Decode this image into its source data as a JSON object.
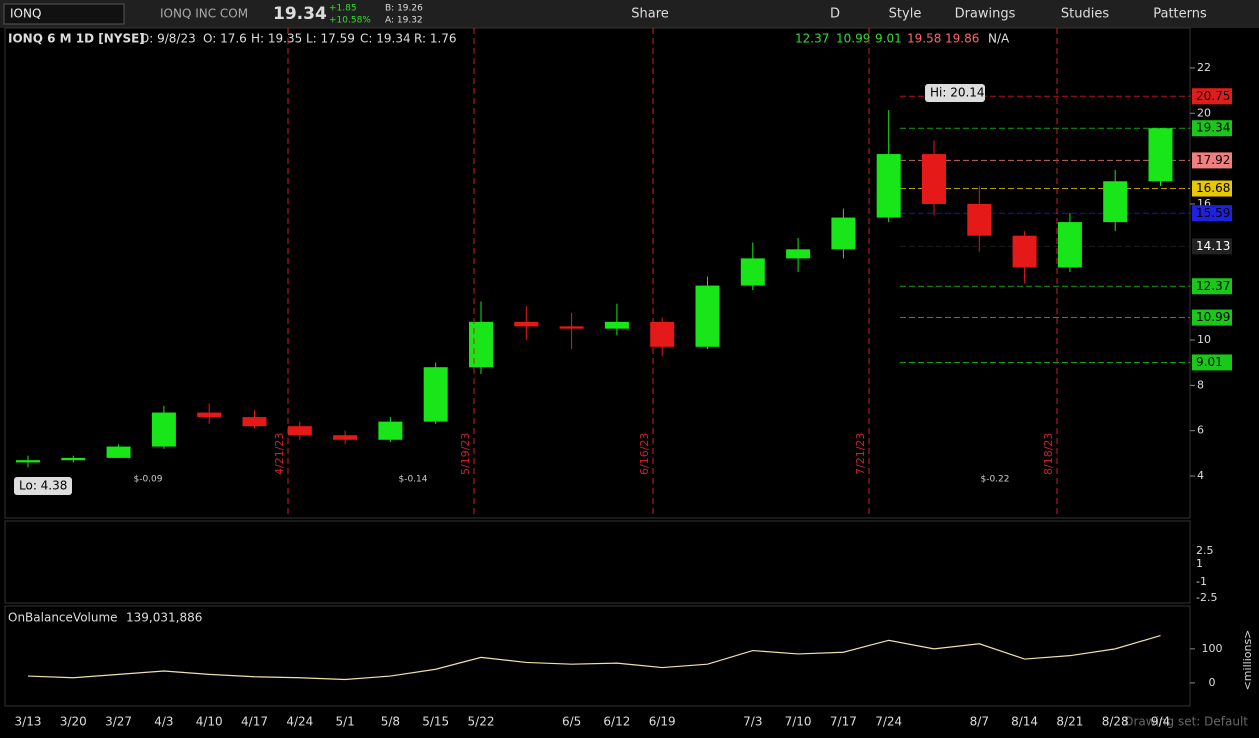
{
  "toolbar": {
    "symbol": "IONQ",
    "company": "IONQ INC COM",
    "last": "19.34",
    "change": "+1.85",
    "change_pct": "+10.58%",
    "bid": "B: 19.26",
    "ask": "A: 19.32",
    "buttons": [
      "Share",
      "D",
      "Style",
      "Drawings",
      "Studies",
      "Patterns"
    ]
  },
  "header": {
    "title": "IONQ 6 M 1D [NYSE]",
    "date": "D: 9/8/23",
    "open": "O: 17.6",
    "high": "H: 19.35",
    "low": "L: 17.59",
    "close": "C: 19.34",
    "range": "R: 1.76",
    "levels": [
      "12.37",
      "10.99",
      "9.01",
      "19.58",
      "19.86",
      "N/A"
    ]
  },
  "annotations": {
    "hi": "Hi: 20.14",
    "lo": "Lo: 4.38",
    "dividends": [
      "$-0.09",
      "$-0.14",
      "$-0.22"
    ],
    "events": [
      "4/21/23",
      "5/19/23",
      "6/16/23",
      "7/21/23",
      "8/18/23"
    ],
    "squeeze_ticks": [
      "2.5",
      "1",
      "-1",
      "-2.5"
    ],
    "obv_name": "OnBalanceVolume",
    "obv_value": "139,031,886",
    "obv_unit": "<millions>",
    "drawing_set": "Drawing set: Default"
  },
  "chart_data": [
    {
      "type": "candlestick",
      "categories": [
        "3/13",
        "3/20",
        "3/27",
        "4/3",
        "4/10",
        "4/17",
        "4/24",
        "5/1",
        "5/8",
        "5/15",
        "5/22",
        null,
        "6/5",
        "6/12",
        "6/19",
        null,
        "7/3",
        "7/10",
        "7/17",
        "7/24",
        null,
        "8/7",
        "8/14",
        "8/21",
        "8/28",
        "9/4"
      ],
      "series": [
        {
          "name": "open",
          "values": [
            4.6,
            4.7,
            4.8,
            5.3,
            6.8,
            6.6,
            6.2,
            5.8,
            5.6,
            6.4,
            8.8,
            10.8,
            10.6,
            10.5,
            10.8,
            9.7,
            12.4,
            13.6,
            14.0,
            15.4,
            18.2,
            16.0,
            14.6,
            13.2,
            15.2,
            17.0
          ]
        },
        {
          "name": "high",
          "values": [
            4.9,
            4.9,
            5.4,
            7.1,
            7.2,
            6.9,
            6.4,
            6.0,
            6.6,
            9.0,
            11.7,
            11.5,
            11.2,
            11.6,
            11.0,
            12.8,
            14.3,
            14.5,
            15.8,
            20.14,
            18.8,
            16.8,
            14.8,
            15.6,
            17.5,
            19.35
          ]
        },
        {
          "name": "low",
          "values": [
            4.38,
            4.6,
            4.8,
            5.2,
            6.3,
            6.1,
            5.6,
            5.4,
            5.5,
            6.3,
            8.5,
            10.0,
            9.6,
            10.2,
            9.3,
            9.6,
            12.2,
            13.0,
            13.6,
            15.2,
            15.5,
            13.9,
            12.5,
            13.0,
            14.8,
            16.8
          ]
        },
        {
          "name": "close",
          "values": [
            4.7,
            4.8,
            5.3,
            6.8,
            6.6,
            6.2,
            5.8,
            5.6,
            6.4,
            8.8,
            10.8,
            10.6,
            10.5,
            10.8,
            9.7,
            12.4,
            13.6,
            14.0,
            15.4,
            18.2,
            16.0,
            14.6,
            13.2,
            15.2,
            17.0,
            19.34
          ]
        }
      ],
      "up_color": "#19e619",
      "down_color": "#e61919",
      "ylim": [
        2.15,
        23.76
      ],
      "yticks": [
        4,
        6,
        8,
        10,
        16,
        20,
        22
      ],
      "price_labels": [
        {
          "value": 20.75,
          "color": "#e01c1c"
        },
        {
          "value": 19.34,
          "color": "#19c819"
        },
        {
          "value": 17.92,
          "color": "#f08080"
        },
        {
          "value": 16.68,
          "color": "#e8c800"
        },
        {
          "value": 15.59,
          "color": "#2020e0"
        },
        {
          "value": 14.13,
          "color": "#222"
        },
        {
          "value": 12.37,
          "color": "#19c819"
        },
        {
          "value": 10.99,
          "color": "#19c819"
        },
        {
          "value": 9.01,
          "color": "#19c819"
        }
      ]
    },
    {
      "type": "line",
      "categories": [
        "3/13",
        "3/20",
        "3/27",
        "4/3",
        "4/10",
        "4/17",
        "4/24",
        "5/1",
        "5/8",
        "5/15",
        "5/22",
        null,
        "6/5",
        "6/12",
        "6/19",
        null,
        "7/3",
        "7/10",
        "7/17",
        "7/24",
        null,
        "8/7",
        "8/14",
        "8/21",
        "8/28",
        "9/4"
      ],
      "values": [
        20,
        15,
        25,
        35,
        25,
        18,
        15,
        10,
        20,
        40,
        75,
        60,
        55,
        58,
        45,
        55,
        95,
        85,
        90,
        125,
        100,
        115,
        70,
        80,
        100,
        139
      ],
      "color": "#f0e0b0",
      "ylim": [
        -68,
        226
      ],
      "yticks": [
        0,
        100
      ]
    }
  ]
}
